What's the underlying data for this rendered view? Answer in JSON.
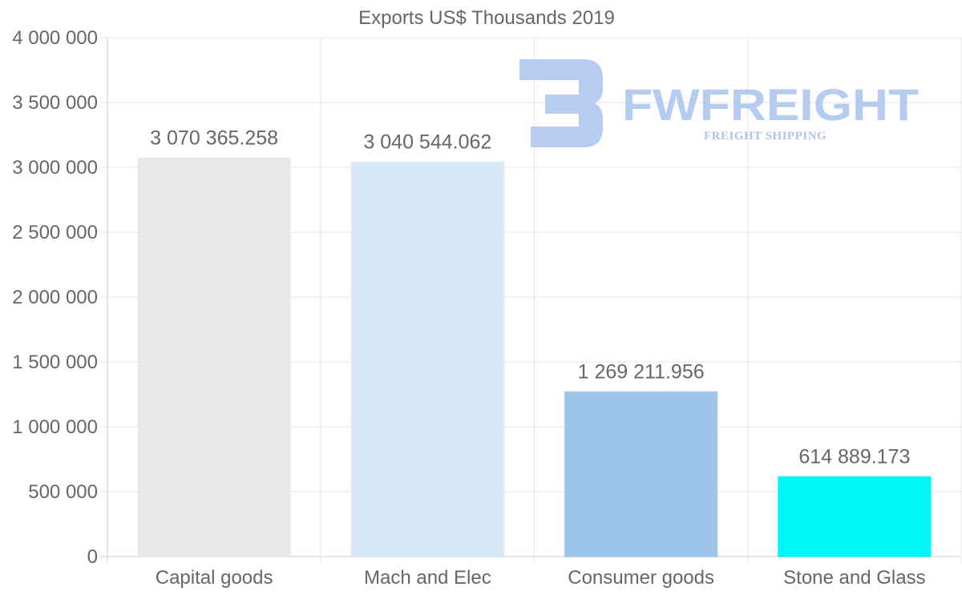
{
  "watermark": {
    "brand": "FWFREIGHT",
    "tagline": "FREIGHT SHIPPING",
    "color": "#b3c9f0"
  },
  "chart_data": {
    "type": "bar",
    "title": "Exports US$ Thousands 2019",
    "categories": [
      "Capital goods",
      "Mach and Elec",
      "Consumer goods",
      "Stone and Glass"
    ],
    "values": [
      3070365.258,
      3040544.062,
      1269211.956,
      614889.173
    ],
    "value_labels": [
      "3 070 365.258",
      "3 040 544.062",
      "1 269 211.956",
      "614 889.173"
    ],
    "colors": [
      "#e8e8e8",
      "#d7e8f9",
      "#9bc4e8",
      "#00f6f6"
    ],
    "ylim": [
      0,
      4000000
    ],
    "yticks": [
      0,
      500000,
      1000000,
      1500000,
      2000000,
      2500000,
      3000000,
      3500000,
      4000000
    ],
    "ytick_labels": [
      "0",
      "500 000",
      "1 000 000",
      "1 500 000",
      "2 000 000",
      "2 500 000",
      "3 000 000",
      "3 500 000",
      "4 000 000"
    ],
    "xlabel": "",
    "ylabel": "",
    "grid": true,
    "legend": "none"
  }
}
